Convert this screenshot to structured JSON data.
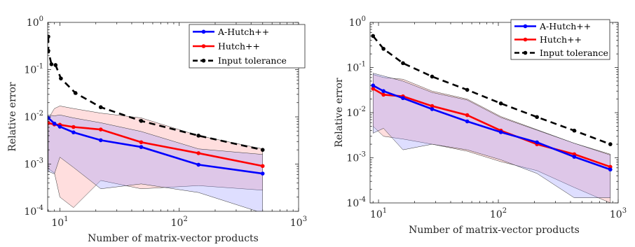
{
  "chart_data": [
    {
      "type": "line",
      "xlabel": "Number of matrix-vector products",
      "ylabel": "Relative error",
      "xscale": "log",
      "yscale": "log",
      "xlim": [
        7.9,
        1000
      ],
      "ylim": [
        0.0001,
        1
      ],
      "xticks": [
        {
          "value": 10,
          "base": "10",
          "exp": "1"
        },
        {
          "value": 100,
          "base": "10",
          "exp": "2"
        },
        {
          "value": 1000,
          "base": "10",
          "exp": "3"
        }
      ],
      "yticks": [
        {
          "value": 1,
          "base": "10",
          "exp": "0"
        },
        {
          "value": 0.1,
          "base": "10",
          "exp": "-1"
        },
        {
          "value": 0.01,
          "base": "10",
          "exp": "-2"
        },
        {
          "value": 0.001,
          "base": "10",
          "exp": "-3"
        },
        {
          "value": 0.0001,
          "base": "10",
          "exp": "-4"
        }
      ],
      "legend_position": "top-right",
      "grid": false,
      "series": [
        {
          "name": "A-Hutch++",
          "color": "#0000ff",
          "dash": "solid",
          "x": [
            8,
            9,
            10,
            13,
            22,
            48,
            145,
            500
          ],
          "y": [
            0.0095,
            0.0072,
            0.0062,
            0.0047,
            0.0032,
            0.0023,
            0.00097,
            0.00063
          ]
        },
        {
          "name": "Hutch++",
          "color": "#ff0000",
          "dash": "solid",
          "x": [
            8,
            9,
            10,
            13,
            22,
            48,
            145,
            500
          ],
          "y": [
            0.0074,
            0.0069,
            0.0068,
            0.0061,
            0.0054,
            0.0029,
            0.0017,
            0.00091
          ]
        },
        {
          "name": "Input tolerance",
          "color": "#000000",
          "dash": "dashed",
          "x": [
            8,
            8,
            8.5,
            9.2,
            10.2,
            13.5,
            22,
            48,
            145,
            500
          ],
          "y": [
            0.5,
            0.25,
            0.13,
            0.125,
            0.065,
            0.032,
            0.016,
            0.0082,
            0.004,
            0.002
          ]
        }
      ],
      "bands": [
        {
          "series": "Hutch++",
          "color": "#ff9999",
          "x": [
            8,
            9,
            10,
            13,
            22,
            48,
            145,
            500
          ],
          "upper": [
            0.0092,
            0.015,
            0.017,
            0.015,
            0.012,
            0.0095,
            0.004,
            0.0021
          ],
          "lower": [
            0.0008,
            0.00065,
            0.0002,
            0.00012,
            0.00045,
            0.0003,
            0.00035,
            0.00028
          ]
        },
        {
          "series": "A-Hutch++",
          "color": "#9999ff",
          "x": [
            8,
            9,
            10,
            13,
            22,
            48,
            145,
            500
          ],
          "upper": [
            0.011,
            0.0105,
            0.011,
            0.0095,
            0.0075,
            0.0049,
            0.0021,
            0.0016
          ],
          "lower": [
            0.0007,
            0.00062,
            0.0014,
            0.00085,
            0.0003,
            0.00038,
            0.00025,
            9.2e-05
          ]
        }
      ]
    },
    {
      "type": "line",
      "xlabel": "Number of matrix-vector products",
      "ylabel": "Relative error",
      "xscale": "log",
      "yscale": "log",
      "xlim": [
        8.5,
        1000
      ],
      "ylim": [
        0.0001,
        1
      ],
      "xticks": [
        {
          "value": 10,
          "base": "10",
          "exp": "1"
        },
        {
          "value": 100,
          "base": "10",
          "exp": "2"
        },
        {
          "value": 1000,
          "base": "10",
          "exp": "3"
        }
      ],
      "yticks": [
        {
          "value": 1,
          "base": "10",
          "exp": "0"
        },
        {
          "value": 0.1,
          "base": "10",
          "exp": "-1"
        },
        {
          "value": 0.01,
          "base": "10",
          "exp": "-2"
        },
        {
          "value": 0.001,
          "base": "10",
          "exp": "-3"
        },
        {
          "value": 0.0001,
          "base": "10",
          "exp": "-4"
        }
      ],
      "legend_position": "top-right",
      "grid": false,
      "series": [
        {
          "name": "A-Hutch++",
          "color": "#0000ff",
          "dash": "solid",
          "x": [
            9,
            11,
            16,
            28,
            55,
            105,
            210,
            430,
            860
          ],
          "y": [
            0.04,
            0.03,
            0.021,
            0.012,
            0.0064,
            0.0037,
            0.0022,
            0.00105,
            0.00055
          ]
        },
        {
          "name": "Hutch++",
          "color": "#ff0000",
          "dash": "solid",
          "x": [
            9,
            11,
            16,
            28,
            55,
            105,
            210,
            430,
            860
          ],
          "y": [
            0.034,
            0.025,
            0.023,
            0.014,
            0.0088,
            0.004,
            0.002,
            0.0012,
            0.00063
          ]
        },
        {
          "name": "Input tolerance",
          "color": "#000000",
          "dash": "dashed",
          "x": [
            9,
            11,
            16,
            28,
            55,
            105,
            210,
            430,
            860
          ],
          "y": [
            0.5,
            0.26,
            0.125,
            0.063,
            0.032,
            0.016,
            0.008,
            0.004,
            0.002
          ]
        }
      ],
      "bands": [
        {
          "series": "Hutch++",
          "color": "#ff9999",
          "x": [
            9,
            11,
            16,
            28,
            55,
            105,
            210,
            430,
            860
          ],
          "upper": [
            0.07,
            0.06,
            0.055,
            0.03,
            0.02,
            0.0082,
            0.0042,
            0.0021,
            0.0012
          ],
          "lower": [
            0.005,
            0.003,
            0.0026,
            0.002,
            0.0014,
            0.00082,
            0.00052,
            0.00022,
            0.0001
          ]
        },
        {
          "series": "A-Hutch++",
          "color": "#9999ff",
          "x": [
            9,
            11,
            16,
            28,
            55,
            105,
            210,
            430,
            860
          ],
          "upper": [
            0.075,
            0.065,
            0.05,
            0.028,
            0.019,
            0.0078,
            0.0041,
            0.0021,
            0.00115
          ],
          "lower": [
            0.0035,
            0.0045,
            0.0015,
            0.002,
            0.0015,
            0.0009,
            0.00045,
            0.00013,
            0.00013
          ]
        }
      ]
    }
  ]
}
